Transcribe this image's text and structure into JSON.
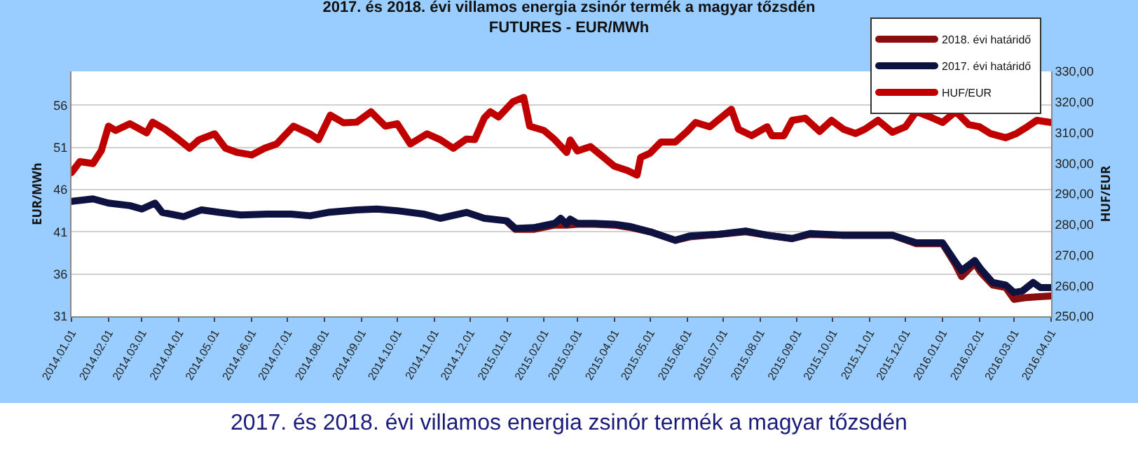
{
  "chart_data": {
    "type": "line",
    "title": "2017. és 2018. évi villamos energia zsinór termék a magyar tőzsdén",
    "subtitle": "FUTURES - EUR/MWh",
    "ylabel": "EUR/MWh",
    "y2label": "HUF/EUR",
    "annotations": [
      "2017. és 2018. évi villamos energia zsinór termék a magyar tőzsdén"
    ],
    "xlim": [
      "2014-01-01",
      "2016-04-01"
    ],
    "xticks": [
      {
        "value": "2014-01-01",
        "label": "2014.01.01"
      },
      {
        "value": "2014-02-01",
        "label": "2014.02.01"
      },
      {
        "value": "2014-03-01",
        "label": "2014.03.01"
      },
      {
        "value": "2014-04-01",
        "label": "2014.04.01"
      },
      {
        "value": "2014-05-01",
        "label": "2014.05.01"
      },
      {
        "value": "2014-06-01",
        "label": "2014.06.01"
      },
      {
        "value": "2014-07-01",
        "label": "2014.07.01"
      },
      {
        "value": "2014-08-01",
        "label": "2014.08.01"
      },
      {
        "value": "2014-09-01",
        "label": "2014.09.01"
      },
      {
        "value": "2014-10-01",
        "label": "2014.10.01"
      },
      {
        "value": "2014-11-01",
        "label": "2014.11.01"
      },
      {
        "value": "2014-12-01",
        "label": "2014.12.01"
      },
      {
        "value": "2015-01-01",
        "label": "2015.01.01"
      },
      {
        "value": "2015-02-01",
        "label": "2015.02.01"
      },
      {
        "value": "2015-03-01",
        "label": "2015.03.01"
      },
      {
        "value": "2015-04-01",
        "label": "2015.04.01"
      },
      {
        "value": "2015-05-01",
        "label": "2015.05.01"
      },
      {
        "value": "2015-06-01",
        "label": "2015.06.01"
      },
      {
        "value": "2015-07-01",
        "label": "2015.07.01"
      },
      {
        "value": "2015-08-01",
        "label": "2015.08.01"
      },
      {
        "value": "2015-09-01",
        "label": "2015.09.01"
      },
      {
        "value": "2015-10-01",
        "label": "2015.10.01"
      },
      {
        "value": "2015-11-01",
        "label": "2015.11.01"
      },
      {
        "value": "2015-12-01",
        "label": "2015.12.01"
      },
      {
        "value": "2016-01-01",
        "label": "2016.01.01"
      },
      {
        "value": "2016-02-01",
        "label": "2016.02.01"
      },
      {
        "value": "2016-03-01",
        "label": "2016.03.01"
      },
      {
        "value": "2016-04-01",
        "label": "2016.04.01"
      }
    ],
    "ylim": [
      31,
      60
    ],
    "yticks": [
      31,
      36,
      41,
      46,
      51,
      56
    ],
    "y2lim": [
      250,
      330
    ],
    "y2ticks": [
      {
        "value": 250,
        "label": "250,00"
      },
      {
        "value": 260,
        "label": "260,00"
      },
      {
        "value": 270,
        "label": "270,00"
      },
      {
        "value": 280,
        "label": "280,00"
      },
      {
        "value": 290,
        "label": "290,00"
      },
      {
        "value": 300,
        "label": "300,00"
      },
      {
        "value": 310,
        "label": "310,00"
      },
      {
        "value": 320,
        "label": "320,00"
      },
      {
        "value": 330,
        "label": "330,00"
      }
    ],
    "grid": "y",
    "legend": "top right",
    "marker": "none",
    "line_style": "solid",
    "series": [
      {
        "name": "2018. évi határidő",
        "color": "#8b0e0e",
        "x": [
          "2015-01-01",
          "2015-01-08",
          "2015-01-24",
          "2015-02-10",
          "2015-02-20",
          "2015-03-01",
          "2015-03-15",
          "2015-04-01",
          "2015-04-15",
          "2015-05-01",
          "2015-05-22",
          "2015-06-03",
          "2015-06-27",
          "2015-07-20",
          "2015-08-07",
          "2015-08-28",
          "2015-09-12",
          "2015-10-10",
          "2015-11-20",
          "2015-12-10",
          "2016-01-01",
          "2016-01-12",
          "2016-01-17",
          "2016-01-28",
          "2016-02-02",
          "2016-02-12",
          "2016-02-23",
          "2016-03-01",
          "2016-03-10",
          "2016-03-20",
          "2016-04-01"
        ],
        "values": [
          42.2,
          41.3,
          41.3,
          41.8,
          41.8,
          41.9,
          41.9,
          41.8,
          41.5,
          41.0,
          40.0,
          40.4,
          40.7,
          41.0,
          40.6,
          40.2,
          40.7,
          40.6,
          40.6,
          39.6,
          39.6,
          37.1,
          35.7,
          37.3,
          36.2,
          34.7,
          34.4,
          33.0,
          33.2,
          33.3,
          33.4
        ]
      },
      {
        "name": "2017. évi határidő",
        "color": "#0e1240",
        "x": [
          "2014-01-01",
          "2014-01-19",
          "2014-02-01",
          "2014-02-19",
          "2014-03-01",
          "2014-03-12",
          "2014-03-18",
          "2014-04-05",
          "2014-04-20",
          "2014-05-05",
          "2014-05-23",
          "2014-06-14",
          "2014-07-04",
          "2014-07-20",
          "2014-08-04",
          "2014-08-28",
          "2014-09-14",
          "2014-10-01",
          "2014-10-23",
          "2014-11-06",
          "2014-11-28",
          "2014-12-13",
          "2015-01-01",
          "2015-01-08",
          "2015-01-24",
          "2015-02-10",
          "2015-02-15",
          "2015-02-20",
          "2015-02-23",
          "2015-03-01",
          "2015-03-15",
          "2015-04-01",
          "2015-04-15",
          "2015-05-01",
          "2015-05-22",
          "2015-06-03",
          "2015-06-27",
          "2015-07-20",
          "2015-08-07",
          "2015-08-28",
          "2015-09-12",
          "2015-10-10",
          "2015-11-20",
          "2015-12-10",
          "2016-01-01",
          "2016-01-12",
          "2016-01-17",
          "2016-01-28",
          "2016-02-02",
          "2016-02-12",
          "2016-02-23",
          "2016-03-01",
          "2016-03-08",
          "2016-03-17",
          "2016-03-23",
          "2016-04-01"
        ],
        "values": [
          44.6,
          44.9,
          44.4,
          44.1,
          43.7,
          44.4,
          43.3,
          42.8,
          43.6,
          43.3,
          43.0,
          43.1,
          43.1,
          42.9,
          43.3,
          43.6,
          43.7,
          43.5,
          43.1,
          42.6,
          43.3,
          42.6,
          42.3,
          41.4,
          41.5,
          42.0,
          42.6,
          41.9,
          42.5,
          42.0,
          42.0,
          41.9,
          41.6,
          41.0,
          40.0,
          40.5,
          40.7,
          41.1,
          40.6,
          40.2,
          40.8,
          40.6,
          40.6,
          39.7,
          39.7,
          37.4,
          36.4,
          37.6,
          36.6,
          35.0,
          34.7,
          33.8,
          34.0,
          35.0,
          34.4,
          34.4
        ]
      },
      {
        "name": "HUF/EUR",
        "color": "#c00000",
        "axis": "y2",
        "x": [
          "2014-01-01",
          "2014-01-08",
          "2014-01-19",
          "2014-01-26",
          "2014-02-01",
          "2014-02-07",
          "2014-02-19",
          "2014-03-05",
          "2014-03-10",
          "2014-03-20",
          "2014-04-01",
          "2014-04-10",
          "2014-04-18",
          "2014-05-01",
          "2014-05-10",
          "2014-05-20",
          "2014-06-01",
          "2014-06-12",
          "2014-06-22",
          "2014-07-06",
          "2014-07-20",
          "2014-07-27",
          "2014-08-06",
          "2014-08-17",
          "2014-08-28",
          "2014-09-09",
          "2014-09-21",
          "2014-10-01",
          "2014-10-12",
          "2014-10-26",
          "2014-11-06",
          "2014-11-17",
          "2014-11-28",
          "2014-12-05",
          "2014-12-13",
          "2014-12-18",
          "2014-12-25",
          "2015-01-06",
          "2015-01-15",
          "2015-01-20",
          "2015-02-01",
          "2015-02-10",
          "2015-02-20",
          "2015-02-23",
          "2015-03-01",
          "2015-03-12",
          "2015-03-23",
          "2015-04-01",
          "2015-04-12",
          "2015-04-20",
          "2015-04-23",
          "2015-05-01",
          "2015-05-10",
          "2015-05-22",
          "2015-06-01",
          "2015-06-08",
          "2015-06-20",
          "2015-07-01",
          "2015-07-08",
          "2015-07-14",
          "2015-07-25",
          "2015-08-07",
          "2015-08-11",
          "2015-08-21",
          "2015-08-28",
          "2015-09-08",
          "2015-09-20",
          "2015-09-30",
          "2015-10-10",
          "2015-10-20",
          "2015-10-28",
          "2015-11-08",
          "2015-11-20",
          "2015-12-01",
          "2015-12-10",
          "2015-12-24",
          "2016-01-01",
          "2016-01-12",
          "2016-01-23",
          "2016-02-01",
          "2016-02-10",
          "2016-02-23",
          "2016-03-03",
          "2016-03-12",
          "2016-03-20",
          "2016-04-01"
        ],
        "values": [
          296.9,
          300.5,
          299.9,
          304.1,
          312.1,
          310.7,
          312.9,
          309.9,
          313.4,
          311.2,
          307.7,
          304.9,
          307.7,
          309.6,
          304.9,
          303.5,
          302.7,
          304.9,
          306.3,
          312.1,
          309.6,
          307.7,
          315.7,
          313.2,
          313.4,
          316.8,
          312.1,
          312.9,
          306.3,
          309.6,
          307.7,
          304.9,
          307.9,
          307.7,
          314.8,
          316.8,
          315.1,
          320.1,
          321.5,
          312.1,
          310.7,
          307.7,
          303.5,
          307.6,
          304.0,
          305.4,
          301.9,
          299.0,
          297.6,
          296.1,
          301.9,
          303.3,
          306.9,
          306.9,
          310.4,
          313.3,
          311.9,
          315.4,
          317.6,
          311.1,
          309.0,
          311.9,
          309.0,
          309.0,
          314.0,
          314.7,
          310.4,
          314.0,
          311.1,
          309.7,
          311.1,
          314.0,
          310.1,
          311.9,
          316.9,
          314.7,
          313.3,
          316.9,
          312.6,
          311.9,
          309.7,
          308.3,
          309.7,
          311.9,
          314.0,
          313.3
        ]
      }
    ]
  }
}
